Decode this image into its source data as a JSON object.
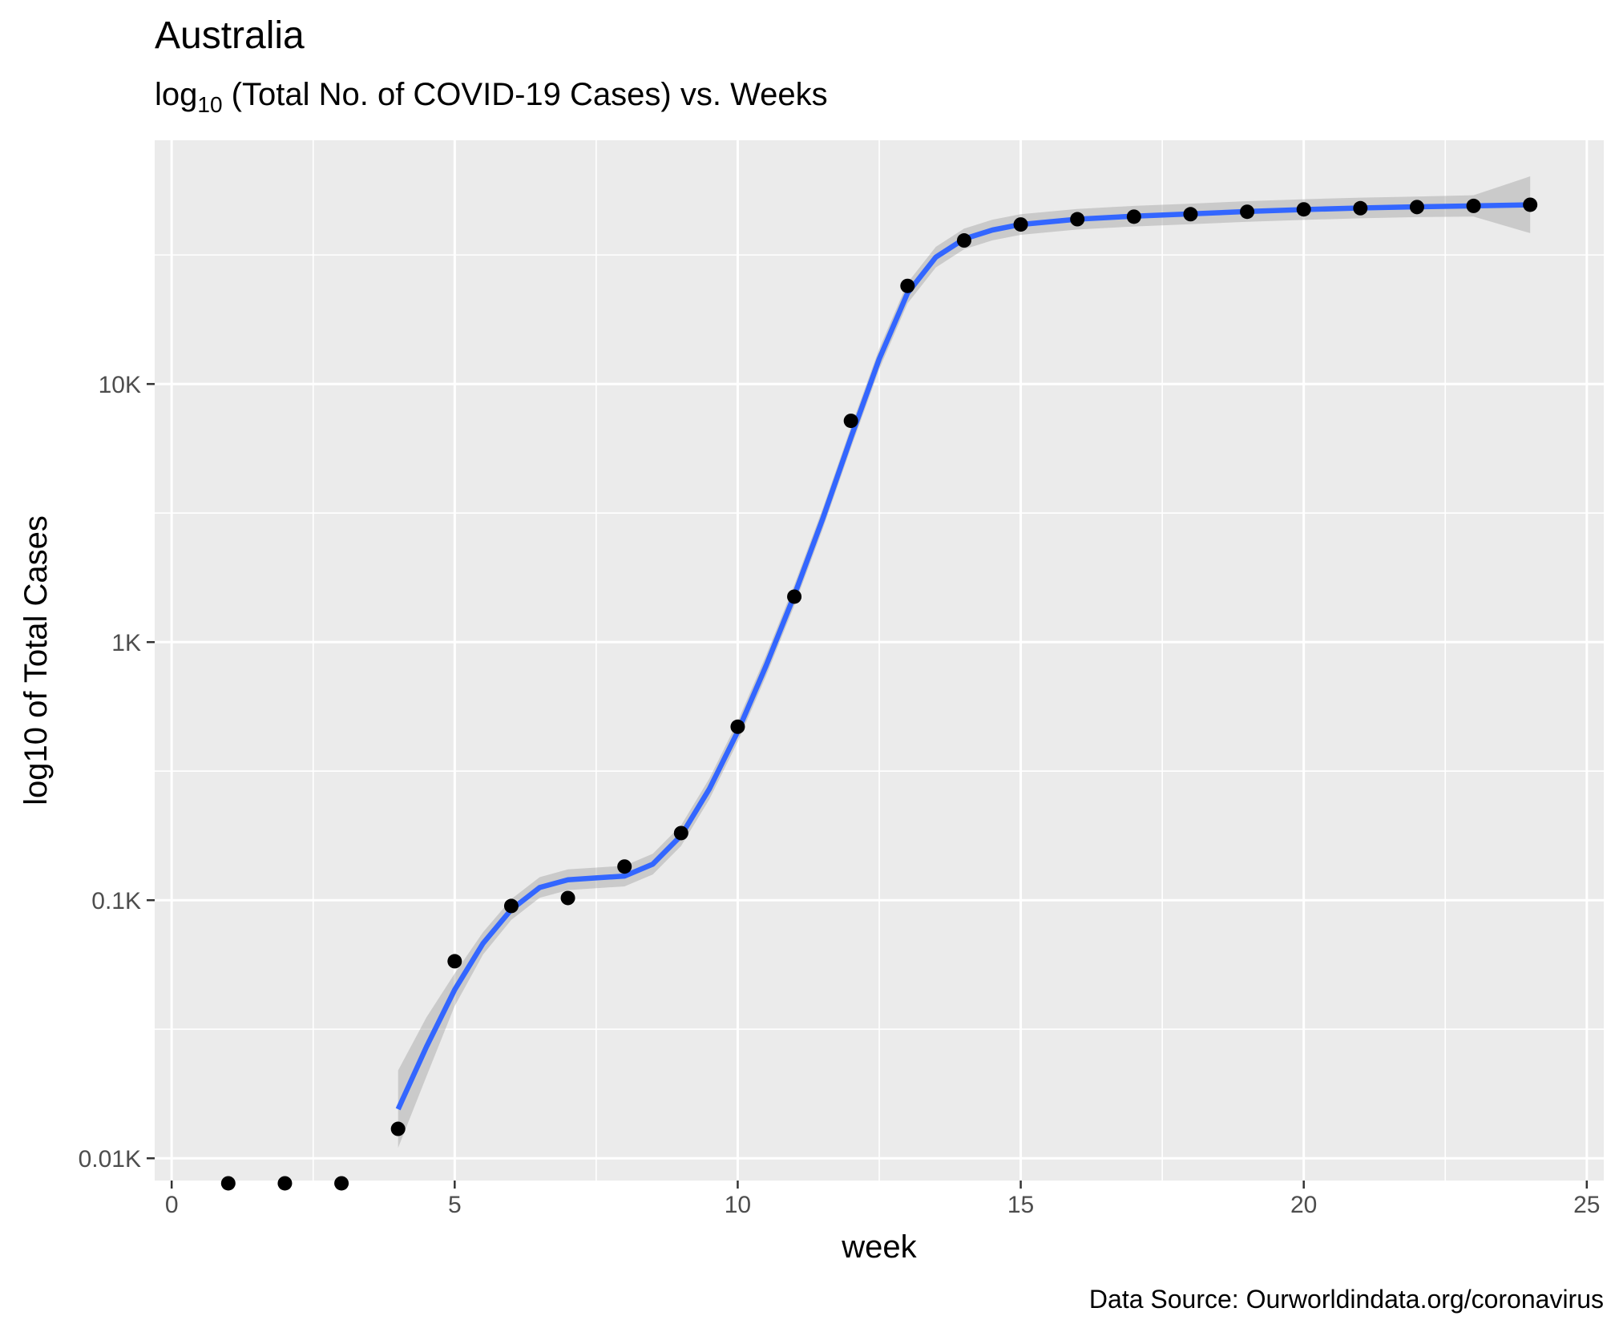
{
  "chart_data": {
    "type": "scatter",
    "title": "Australia",
    "subtitle": {
      "prefix": "log",
      "subscript": "10",
      "rest": " (Total No. of COVID-19 Cases) vs. Weeks"
    },
    "xlabel": "week",
    "ylabel": "log10 of Total Cases",
    "caption": "Data Source: Ourworldindata.org/coronavirus",
    "y_scale": "log10",
    "xlim": [
      -0.3,
      25.3
    ],
    "ylim": [
      8.2,
      88000
    ],
    "x_ticks": [
      {
        "value": 0,
        "label": "0"
      },
      {
        "value": 5,
        "label": "5"
      },
      {
        "value": 10,
        "label": "10"
      },
      {
        "value": 15,
        "label": "15"
      },
      {
        "value": 20,
        "label": "20"
      },
      {
        "value": 25,
        "label": "25"
      }
    ],
    "y_ticks": [
      {
        "value": 10,
        "label": "0.01K"
      },
      {
        "value": 100,
        "label": "0.1K"
      },
      {
        "value": 1000,
        "label": "1K"
      },
      {
        "value": 10000,
        "label": "10K"
      }
    ],
    "grid": true,
    "points": {
      "name": "total cases",
      "x": [
        1,
        2,
        3,
        4,
        5,
        6,
        7,
        8,
        9,
        10,
        11,
        12,
        13,
        14,
        15,
        16,
        17,
        18,
        19,
        20,
        21,
        22,
        23,
        24
      ],
      "y": [
        8,
        8,
        8,
        13,
        58,
        95,
        102,
        135,
        182,
        470,
        1500,
        7200,
        24000,
        36000,
        41500,
        43500,
        44500,
        45500,
        46500,
        47500,
        48000,
        48500,
        49000,
        49500
      ]
    },
    "smooth_line": {
      "name": "smoothed trend",
      "x": [
        4,
        4.5,
        5,
        5.5,
        6,
        6.5,
        7,
        7.5,
        8,
        8.5,
        9,
        9.5,
        10,
        10.5,
        11,
        11.5,
        12,
        12.5,
        13,
        13.5,
        14,
        14.5,
        15,
        16,
        17,
        18,
        19,
        20,
        21,
        22,
        23,
        24
      ],
      "y": [
        15.5,
        27,
        45,
        68,
        92,
        112,
        120,
        122,
        124,
        138,
        178,
        270,
        450,
        810,
        1520,
        3000,
        6200,
        12500,
        22500,
        31000,
        36500,
        39500,
        41500,
        43500,
        44700,
        45600,
        46600,
        47400,
        48100,
        48600,
        49000,
        49500
      ],
      "color": "#3366FF"
    },
    "colors": {
      "panel": "#EBEBEB",
      "grid": "#FFFFFF",
      "point": "#000000",
      "ribbon": "#999999"
    }
  }
}
